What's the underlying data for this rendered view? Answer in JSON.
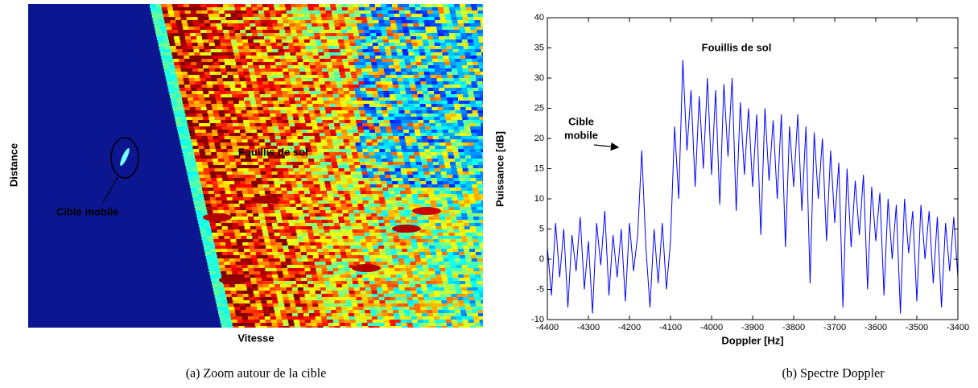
{
  "chart_data": [
    {
      "type": "image",
      "xlabel": "Vitesse",
      "ylabel": "Distance",
      "annotations": [
        "Fouillis de sol",
        "Cible mobile"
      ],
      "caption": "(a) Zoom autour de la cible"
    },
    {
      "type": "line",
      "xlabel": "Doppler [Hz]",
      "ylabel": "Puissance [dB]",
      "annotations": [
        "Fouillis de sol",
        [
          "Cible",
          "mobile"
        ]
      ],
      "caption": "(b) Spectre Doppler",
      "xlim": [
        -4400,
        -3400
      ],
      "xticks": [
        -4400,
        -4300,
        -4200,
        -4100,
        -4000,
        -3900,
        -3800,
        -3700,
        -3600,
        -3500,
        -3400
      ],
      "ylim": [
        -10,
        40
      ],
      "yticks": [
        -10,
        -5,
        0,
        5,
        10,
        15,
        20,
        25,
        30,
        35,
        40
      ],
      "x": [
        -4400,
        -4390,
        -4380,
        -4370,
        -4360,
        -4350,
        -4340,
        -4330,
        -4320,
        -4310,
        -4300,
        -4290,
        -4280,
        -4270,
        -4260,
        -4250,
        -4240,
        -4230,
        -4220,
        -4210,
        -4200,
        -4190,
        -4180,
        -4170,
        -4160,
        -4150,
        -4140,
        -4130,
        -4120,
        -4110,
        -4100,
        -4090,
        -4080,
        -4070,
        -4060,
        -4050,
        -4040,
        -4030,
        -4020,
        -4010,
        -4000,
        -3990,
        -3980,
        -3970,
        -3960,
        -3950,
        -3940,
        -3930,
        -3920,
        -3910,
        -3900,
        -3890,
        -3880,
        -3870,
        -3860,
        -3850,
        -3840,
        -3830,
        -3820,
        -3810,
        -3800,
        -3790,
        -3780,
        -3770,
        -3760,
        -3750,
        -3740,
        -3730,
        -3720,
        -3710,
        -3700,
        -3690,
        -3680,
        -3670,
        -3660,
        -3650,
        -3640,
        -3630,
        -3620,
        -3610,
        -3600,
        -3590,
        -3580,
        -3570,
        -3560,
        -3550,
        -3540,
        -3530,
        -3520,
        -3510,
        -3500,
        -3490,
        -3480,
        -3470,
        -3460,
        -3450,
        -3440,
        -3430,
        -3420,
        -3410,
        -3400
      ],
      "color": "#0000ff",
      "values": [
        2,
        -6,
        6,
        -3,
        5,
        -8,
        4,
        -2,
        7,
        -5,
        3,
        -9,
        6,
        -1,
        8,
        -6,
        4,
        -3,
        5,
        -7,
        6,
        -2,
        4,
        18,
        2,
        -8,
        5,
        -4,
        6,
        -5,
        3,
        22,
        10,
        33,
        18,
        28,
        12,
        27,
        15,
        30,
        14,
        28,
        9,
        29,
        17,
        30,
        8,
        26,
        14,
        25,
        12,
        24,
        4,
        25,
        13,
        23,
        10,
        24,
        2,
        22,
        12,
        24,
        8,
        22,
        -4,
        21,
        10,
        20,
        3,
        18,
        6,
        16,
        -8,
        15,
        2,
        13,
        4,
        14,
        -5,
        12,
        3,
        11,
        -6,
        10,
        0,
        9,
        -9,
        10,
        1,
        8,
        -7,
        9,
        0,
        8,
        -4,
        7,
        -8,
        6,
        -2,
        7,
        -3
      ]
    }
  ]
}
